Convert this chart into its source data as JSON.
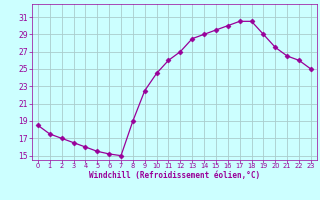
{
  "x": [
    0,
    1,
    2,
    3,
    4,
    5,
    6,
    7,
    8,
    9,
    10,
    11,
    12,
    13,
    14,
    15,
    16,
    17,
    18,
    19,
    20,
    21,
    22,
    23
  ],
  "y": [
    18.5,
    17.5,
    17.0,
    16.5,
    16.0,
    15.5,
    15.2,
    15.0,
    19.0,
    22.5,
    24.5,
    26.0,
    27.0,
    28.5,
    29.0,
    29.5,
    30.0,
    30.5,
    30.5,
    29.0,
    27.5,
    26.5,
    26.0,
    25.0
  ],
  "line_color": "#990099",
  "marker": "D",
  "marker_size": 2.5,
  "bg_color": "#ccffff",
  "grid_color": "#aacccc",
  "xlabel": "Windchill (Refroidissement éolien,°C)",
  "xlabel_color": "#990099",
  "tick_color": "#990099",
  "yticks": [
    15,
    17,
    19,
    21,
    23,
    25,
    27,
    29,
    31
  ],
  "xtick_labels": [
    "0",
    "1",
    "2",
    "3",
    "4",
    "5",
    "6",
    "7",
    "8",
    "9",
    "10",
    "11",
    "12",
    "13",
    "14",
    "15",
    "16",
    "17",
    "18",
    "19",
    "20",
    "21",
    "22",
    "23"
  ],
  "ylim": [
    14.5,
    32.5
  ],
  "xlim": [
    -0.5,
    23.5
  ],
  "figsize": [
    3.2,
    2.0
  ],
  "dpi": 100
}
